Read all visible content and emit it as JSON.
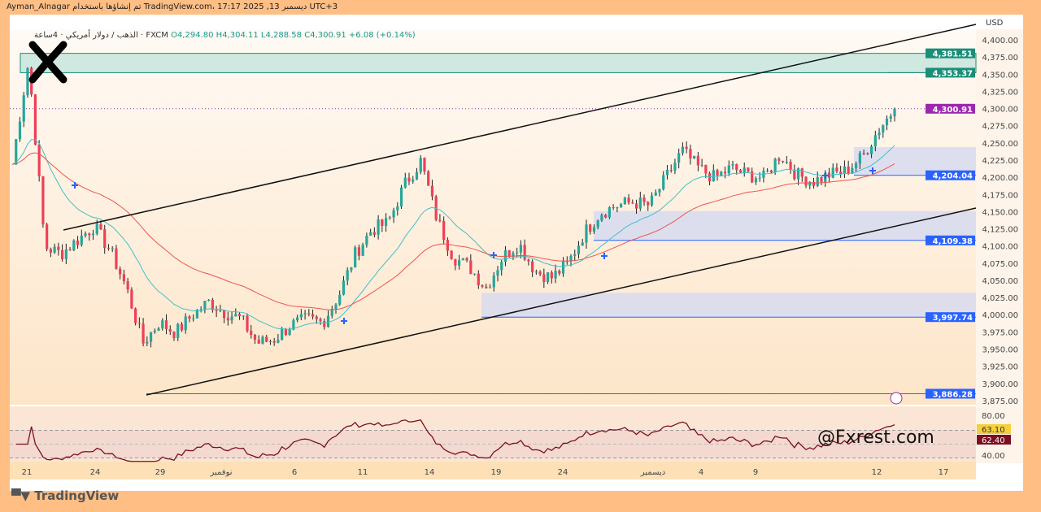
{
  "header": {
    "text": "Ayman_Alnagar تم إنشاؤها باستخدام TradingView.com، 17:17 2025 ,13 ديسمبر UTC+3"
  },
  "legend": {
    "symbol": "الذهب / دولار أمريكي · 4ساعة · FXCM",
    "open": "O4,294.80",
    "high": "H4,304.11",
    "low": "L4,288.58",
    "close": "C4,300.91",
    "change": "+6.08 (+0.14%)"
  },
  "watermark": "@Fxrest.com",
  "brand": "TradingView",
  "colors": {
    "bull": "#26a69a",
    "bear": "#ef3f57",
    "ema_fast": "#3fc1c9",
    "ema_slow": "#ef5350",
    "rsi": "#7b1020",
    "zone_supply": "#cfe9e0",
    "zone_demand": "#d9dbee",
    "level_line": "#2962ff",
    "channel": "#111111",
    "current_price": "#9c27b0"
  },
  "chart_data": {
    "type": "candlestick",
    "currency": "USD",
    "ylim": [
      3875,
      4410
    ],
    "y_ticks": [
      "4,400.00",
      "4,375.00",
      "4,350.00",
      "4,325.00",
      "4,300.00",
      "4,275.00",
      "4,250.00",
      "4,225.00",
      "4,200.00",
      "4,175.00",
      "4,150.00",
      "4,125.00",
      "4,100.00",
      "4,075.00",
      "4,050.00",
      "4,025.00",
      "4,000.00",
      "3,975.00",
      "3,950.00",
      "3,925.00",
      "3,900.00",
      "3,875.00"
    ],
    "x_ticks": [
      "21",
      "24",
      "29",
      "نوفمبر",
      "6",
      "11",
      "14",
      "19",
      "24",
      "ديسمبر",
      "4",
      "9",
      "12",
      "17"
    ],
    "approx_close_path": [
      4220,
      4370,
      4100,
      4090,
      4110,
      4130,
      4095,
      4040,
      3960,
      3990,
      3975,
      4000,
      4020,
      4005,
      3995,
      3960,
      3965,
      3985,
      3995,
      3990,
      4030,
      4090,
      4125,
      4135,
      4190,
      4225,
      4140,
      4085,
      4070,
      4040,
      4085,
      4105,
      4065,
      4055,
      4075,
      4120,
      4150,
      4160,
      4165,
      4160,
      4200,
      4240,
      4215,
      4200,
      4215,
      4205,
      4200,
      4235,
      4205,
      4195,
      4205,
      4210,
      4230,
      4270,
      4300.91
    ],
    "last_price": "4,300.91",
    "level_labels": [
      {
        "value": 4381.51,
        "label": "4,381.51",
        "color": "#1a8f78"
      },
      {
        "value": 4353.37,
        "label": "4,353.37",
        "color": "#1a8f78"
      },
      {
        "value": 4300.91,
        "label": "4,300.91",
        "color": "#9c27b0"
      },
      {
        "value": 4204.04,
        "label": "4,204.04",
        "color": "#2962ff"
      },
      {
        "value": 4109.38,
        "label": "4,109.38",
        "color": "#2962ff"
      },
      {
        "value": 3997.74,
        "label": "3,997.74",
        "color": "#2962ff"
      },
      {
        "value": 3886.28,
        "label": "3,886.28",
        "color": "#2962ff"
      }
    ],
    "rsi": {
      "ticks": [
        "80.00",
        "40.00"
      ],
      "values": [
        "63.10",
        "62.40"
      ]
    }
  }
}
